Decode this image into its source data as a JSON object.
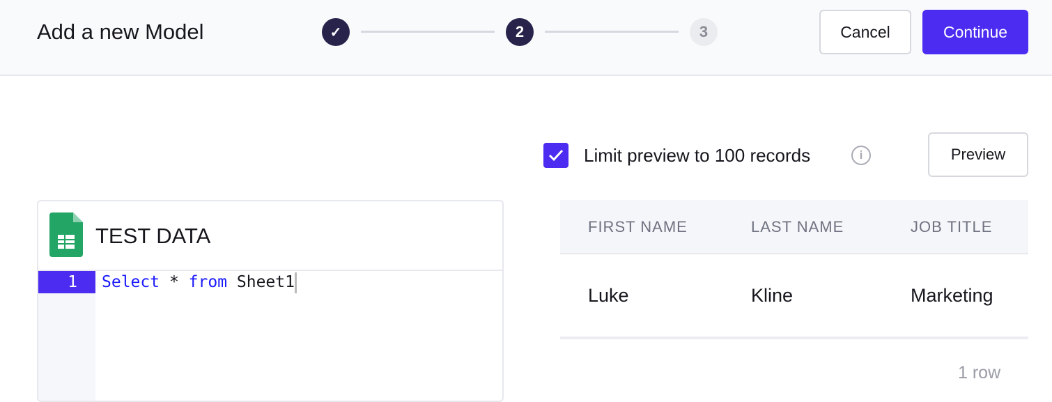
{
  "header": {
    "title": "Add a new Model",
    "steps": [
      {
        "label": "✓",
        "state": "done"
      },
      {
        "label": "2",
        "state": "active"
      },
      {
        "label": "3",
        "state": "todo"
      }
    ],
    "cancel_label": "Cancel",
    "continue_label": "Continue"
  },
  "preview_controls": {
    "limit_checked": true,
    "limit_label": "Limit preview to 100 records",
    "info_icon": "i",
    "preview_label": "Preview"
  },
  "editor": {
    "source_title": "TEST DATA",
    "source_icon": "google-sheets-icon",
    "lines": [
      {
        "number": "1",
        "tokens": [
          {
            "text": "Select",
            "kw": true
          },
          {
            "text": " * ",
            "kw": false
          },
          {
            "text": "from",
            "kw": true
          },
          {
            "text": " Sheet1",
            "kw": false
          }
        ]
      }
    ]
  },
  "table": {
    "columns": [
      "FIRST NAME",
      "LAST NAME",
      "JOB TITLE"
    ],
    "rows": [
      [
        "Luke",
        "Kline",
        "Marketing"
      ]
    ],
    "row_count": "1 row"
  },
  "colors": {
    "accent": "#4b2cf0",
    "step_dark": "#28234a"
  }
}
